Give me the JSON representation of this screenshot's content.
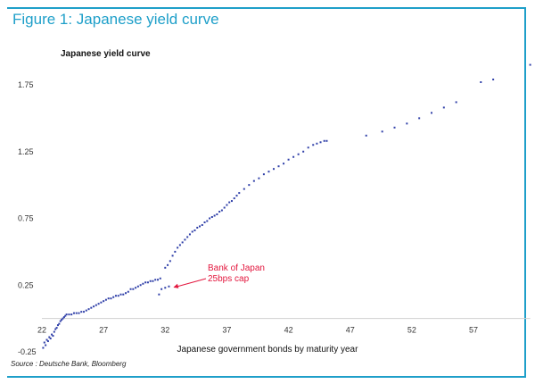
{
  "figure_title": "Figure 1: Japanese yield curve",
  "source": "Source : Deutsche Bank, Bloomberg",
  "colors": {
    "accent": "#1e9fc9",
    "points": "#2f3fa8",
    "annotation": "#e3173e"
  },
  "chart_data": {
    "type": "scatter",
    "title": "Japanese yield curve",
    "xlabel": "Japanese government bonds by maturity year",
    "ylabel": "",
    "xlim": [
      22,
      62
    ],
    "ylim": [
      -0.3,
      2.05
    ],
    "xticks": [
      22,
      27,
      32,
      37,
      42,
      47,
      52,
      57
    ],
    "yticks": [
      -0.25,
      0.25,
      0.75,
      1.25,
      1.75
    ],
    "xtick_labels": [
      "22",
      "27",
      "32",
      "37",
      "42",
      "47",
      "52",
      "57"
    ],
    "ytick_labels": [
      "-0.25",
      "0.25",
      "0.75",
      "1.25",
      "1.75"
    ],
    "grid": false,
    "points": [
      [
        22.1,
        -0.22
      ],
      [
        22.2,
        -0.18
      ],
      [
        22.3,
        -0.2
      ],
      [
        22.4,
        -0.16
      ],
      [
        22.5,
        -0.17
      ],
      [
        22.6,
        -0.14
      ],
      [
        22.7,
        -0.15
      ],
      [
        22.8,
        -0.12
      ],
      [
        22.9,
        -0.13
      ],
      [
        23.0,
        -0.1
      ],
      [
        23.1,
        -0.08
      ],
      [
        23.2,
        -0.07
      ],
      [
        23.3,
        -0.05
      ],
      [
        23.4,
        -0.04
      ],
      [
        23.5,
        -0.02
      ],
      [
        23.6,
        -0.01
      ],
      [
        23.7,
        0.0
      ],
      [
        23.8,
        0.01
      ],
      [
        23.9,
        0.02
      ],
      [
        24.0,
        0.03
      ],
      [
        24.2,
        0.03
      ],
      [
        24.4,
        0.03
      ],
      [
        24.6,
        0.04
      ],
      [
        24.8,
        0.04
      ],
      [
        25.0,
        0.04
      ],
      [
        25.2,
        0.05
      ],
      [
        25.4,
        0.05
      ],
      [
        25.6,
        0.06
      ],
      [
        25.8,
        0.07
      ],
      [
        26.0,
        0.08
      ],
      [
        26.2,
        0.09
      ],
      [
        26.4,
        0.1
      ],
      [
        26.6,
        0.11
      ],
      [
        26.8,
        0.12
      ],
      [
        27.0,
        0.13
      ],
      [
        27.2,
        0.14
      ],
      [
        27.4,
        0.15
      ],
      [
        27.6,
        0.15
      ],
      [
        27.8,
        0.16
      ],
      [
        28.0,
        0.17
      ],
      [
        28.2,
        0.17
      ],
      [
        28.4,
        0.18
      ],
      [
        28.6,
        0.18
      ],
      [
        28.8,
        0.19
      ],
      [
        29.0,
        0.2
      ],
      [
        29.2,
        0.22
      ],
      [
        29.4,
        0.22
      ],
      [
        29.6,
        0.23
      ],
      [
        29.8,
        0.24
      ],
      [
        30.0,
        0.25
      ],
      [
        30.2,
        0.26
      ],
      [
        30.4,
        0.27
      ],
      [
        30.6,
        0.27
      ],
      [
        30.8,
        0.28
      ],
      [
        31.0,
        0.28
      ],
      [
        31.2,
        0.29
      ],
      [
        31.4,
        0.29
      ],
      [
        31.6,
        0.3
      ],
      [
        31.5,
        0.18
      ],
      [
        31.7,
        0.22
      ],
      [
        32.0,
        0.23
      ],
      [
        32.3,
        0.24
      ],
      [
        32.0,
        0.38
      ],
      [
        32.2,
        0.4
      ],
      [
        32.4,
        0.43
      ],
      [
        32.6,
        0.47
      ],
      [
        32.8,
        0.5
      ],
      [
        33.0,
        0.53
      ],
      [
        33.2,
        0.55
      ],
      [
        33.4,
        0.57
      ],
      [
        33.6,
        0.59
      ],
      [
        33.8,
        0.61
      ],
      [
        34.0,
        0.63
      ],
      [
        34.2,
        0.65
      ],
      [
        34.4,
        0.66
      ],
      [
        34.6,
        0.68
      ],
      [
        34.8,
        0.69
      ],
      [
        35.0,
        0.7
      ],
      [
        35.2,
        0.72
      ],
      [
        35.4,
        0.73
      ],
      [
        35.6,
        0.75
      ],
      [
        35.8,
        0.76
      ],
      [
        36.0,
        0.77
      ],
      [
        36.2,
        0.78
      ],
      [
        36.4,
        0.8
      ],
      [
        36.6,
        0.81
      ],
      [
        36.8,
        0.83
      ],
      [
        37.0,
        0.85
      ],
      [
        37.2,
        0.87
      ],
      [
        37.4,
        0.88
      ],
      [
        37.6,
        0.9
      ],
      [
        37.8,
        0.92
      ],
      [
        38.0,
        0.94
      ],
      [
        38.4,
        0.97
      ],
      [
        38.8,
        1.0
      ],
      [
        39.2,
        1.03
      ],
      [
        39.6,
        1.05
      ],
      [
        40.0,
        1.08
      ],
      [
        40.4,
        1.1
      ],
      [
        40.8,
        1.12
      ],
      [
        41.2,
        1.14
      ],
      [
        41.6,
        1.16
      ],
      [
        42.0,
        1.19
      ],
      [
        42.4,
        1.21
      ],
      [
        42.8,
        1.23
      ],
      [
        43.2,
        1.25
      ],
      [
        43.6,
        1.28
      ],
      [
        44.0,
        1.3
      ],
      [
        44.3,
        1.31
      ],
      [
        44.6,
        1.32
      ],
      [
        44.9,
        1.33
      ],
      [
        45.1,
        1.33
      ],
      [
        48.3,
        1.37
      ],
      [
        49.6,
        1.4
      ],
      [
        50.6,
        1.43
      ],
      [
        51.6,
        1.46
      ],
      [
        52.6,
        1.5
      ],
      [
        53.6,
        1.54
      ],
      [
        54.6,
        1.58
      ],
      [
        55.6,
        1.62
      ],
      [
        57.6,
        1.77
      ],
      [
        58.6,
        1.79
      ],
      [
        61.6,
        1.9
      ]
    ],
    "annotations": [
      {
        "text_lines": [
          "Bank of Japan",
          "25bps cap"
        ],
        "target": [
          32.3,
          0.24
        ]
      }
    ]
  }
}
